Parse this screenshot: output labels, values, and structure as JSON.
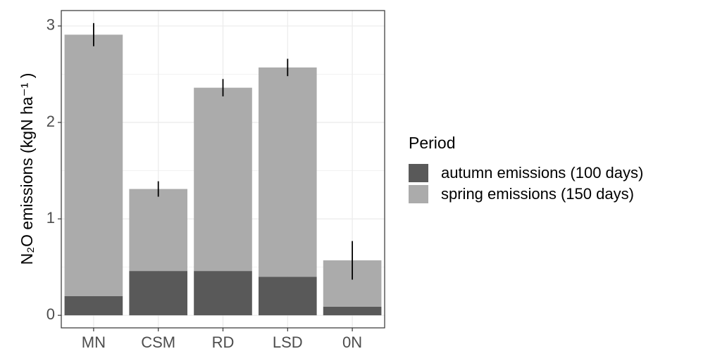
{
  "chart_data": {
    "type": "stacked_bar",
    "y_label": "N₂O emissions (kgN ha⁻¹ )",
    "categories": [
      "MN",
      "CSM",
      "RD",
      "LSD",
      "0N"
    ],
    "series": [
      {
        "name": "autumn emissions (100 days)",
        "color": "#595959",
        "values": [
          0.2,
          0.46,
          0.46,
          0.4,
          0.09
        ]
      },
      {
        "name": "spring emissions (150 days)",
        "color": "#ababab",
        "values": [
          2.71,
          0.85,
          1.9,
          2.17,
          0.48
        ]
      }
    ],
    "errors": [
      0.12,
      0.08,
      0.09,
      0.09,
      0.2
    ],
    "ylim": [
      -0.13,
      3.16
    ],
    "yticks": [
      0,
      1,
      2,
      3
    ],
    "grid": true,
    "legend_title": "Period",
    "legend_position": "right"
  }
}
